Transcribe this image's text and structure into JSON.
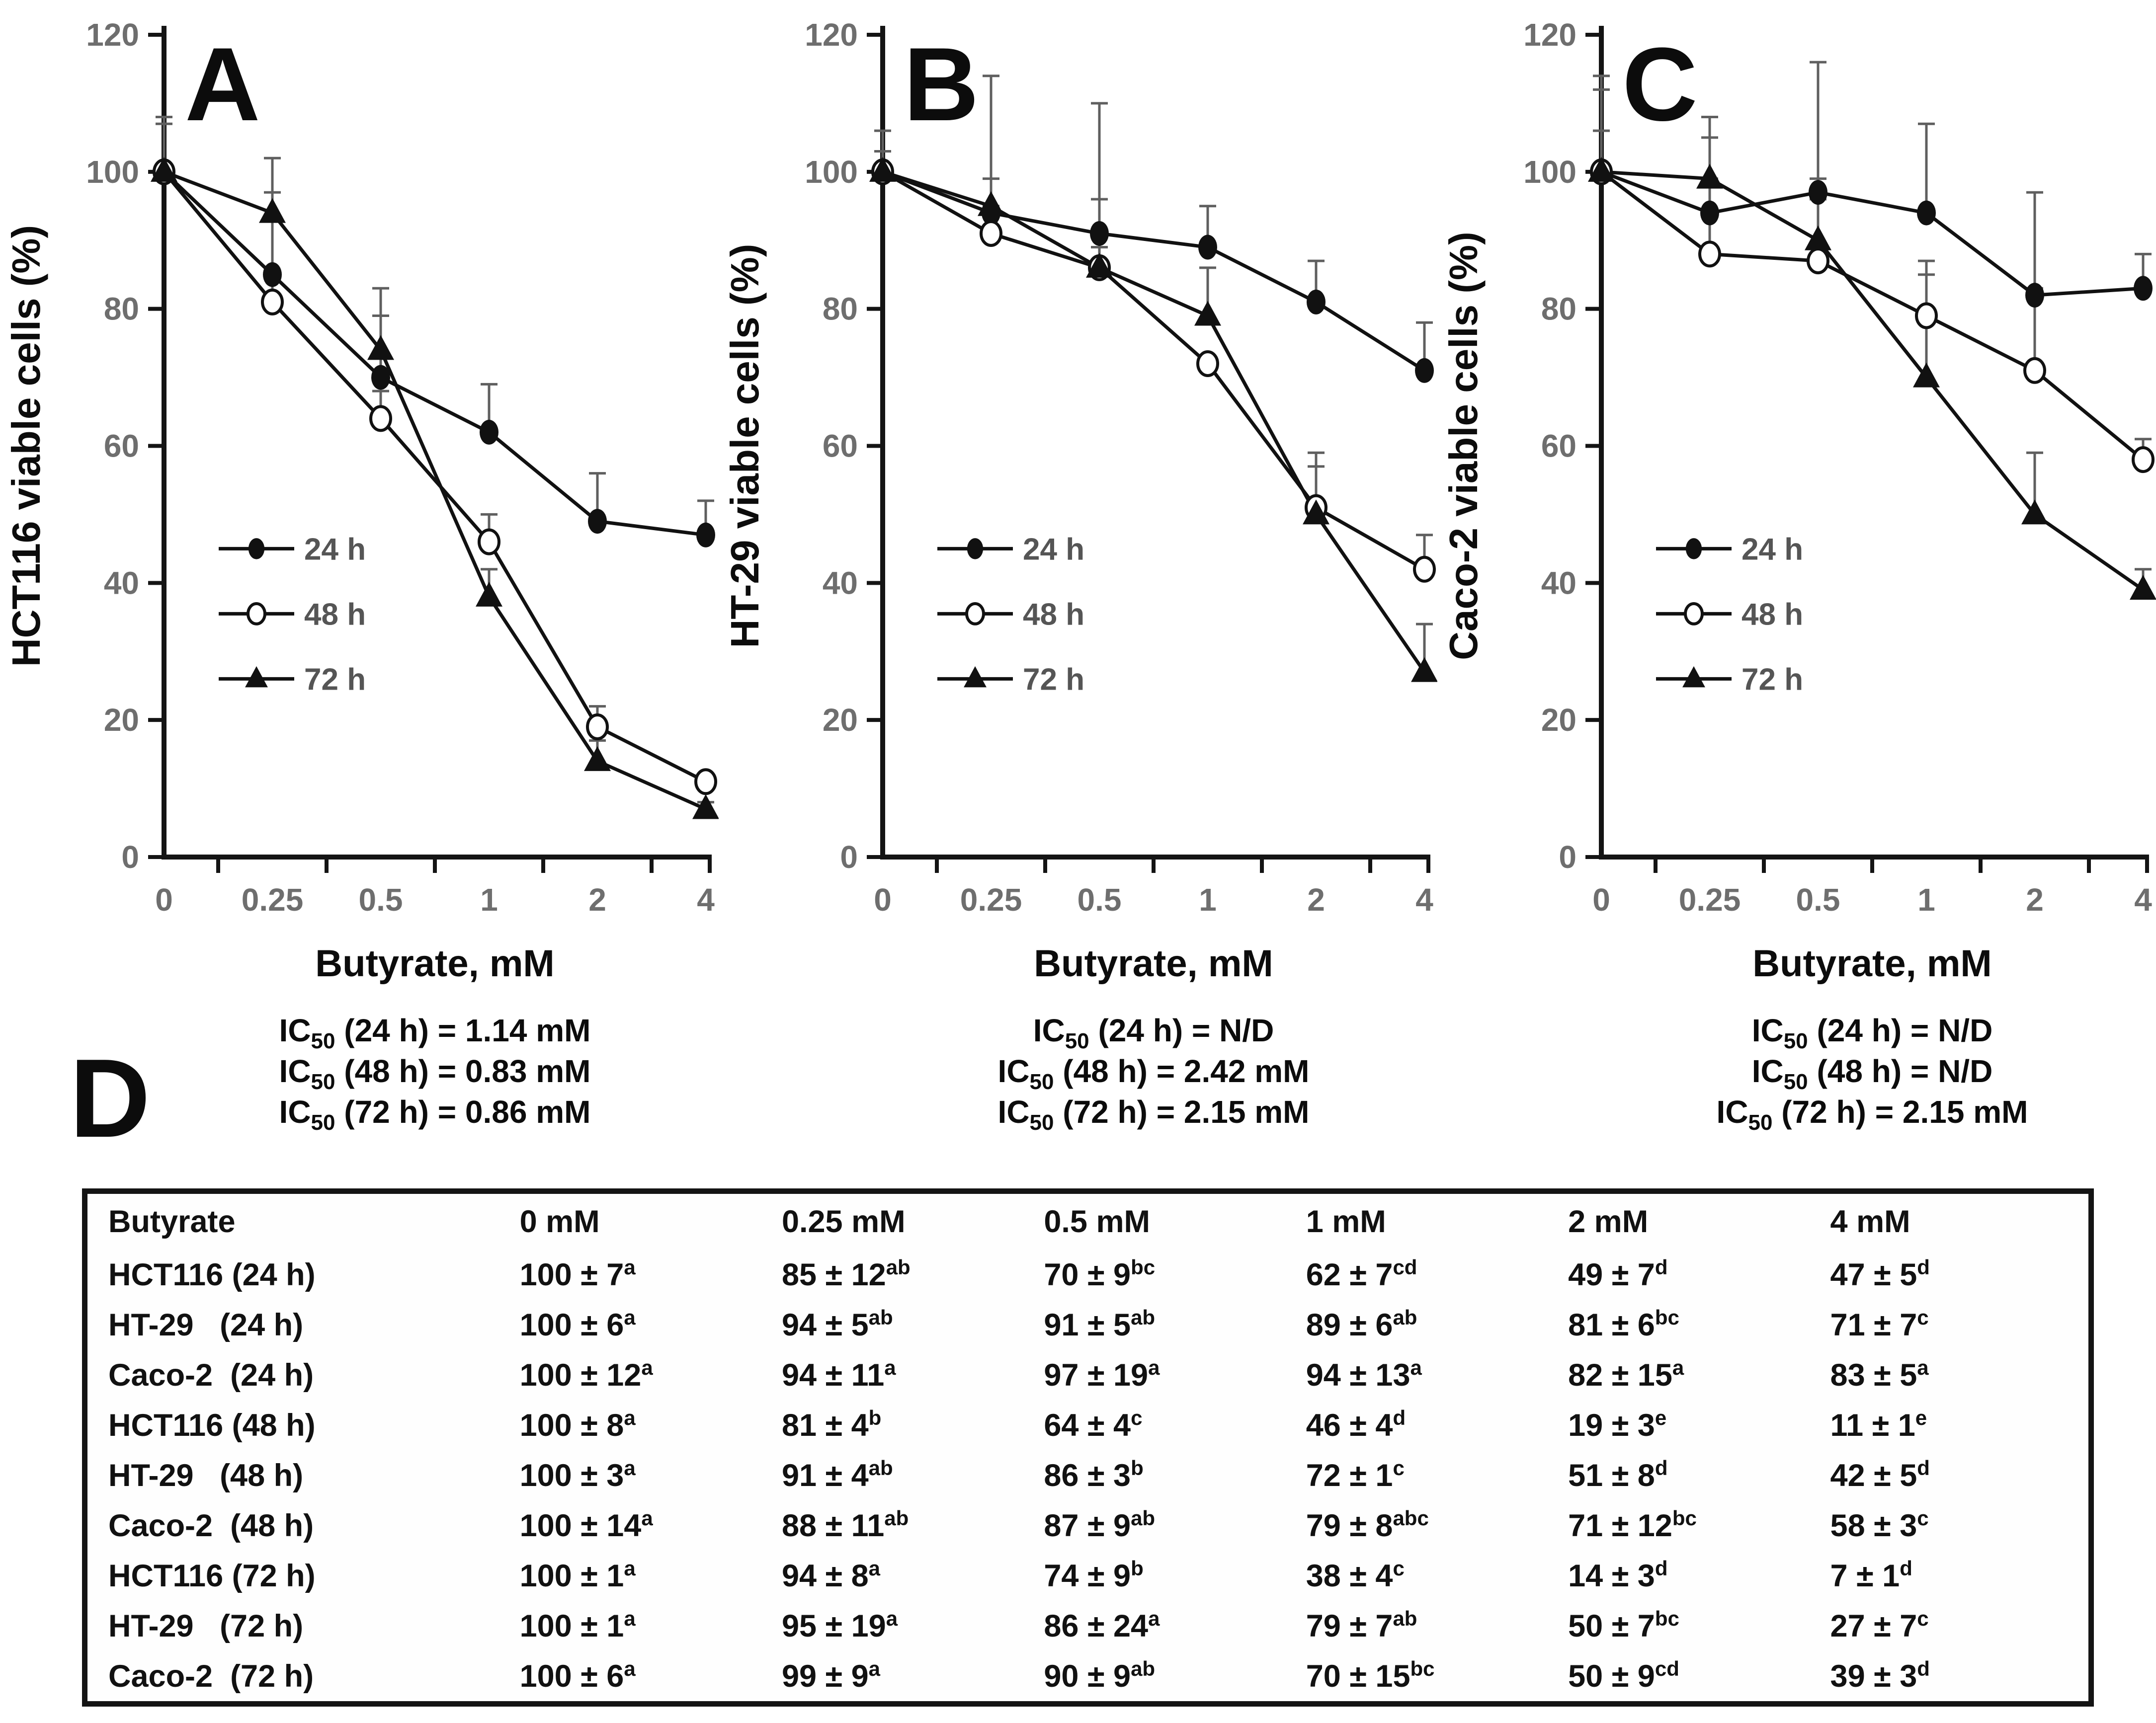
{
  "figure": {
    "x_axis_label": "Butyrate, mM",
    "legend_labels": [
      "24 h",
      "48 h",
      "72 h"
    ],
    "colors": {
      "axis": "#141414",
      "line": "#111111",
      "tick_label": "#6e6e6e",
      "legend_text": "#555555",
      "error_bar": "#5f5f5f",
      "background": "#ffffff"
    }
  },
  "chart_data": [
    {
      "type": "line",
      "panel": "A",
      "ylabel": "HCT116 viable cells (%)",
      "xlabel": "Butyrate, mM",
      "categories": [
        "0",
        "0.25",
        "0.5",
        "1",
        "2",
        "4"
      ],
      "ylim": [
        0,
        120
      ],
      "yticks": [
        0,
        20,
        40,
        60,
        80,
        100,
        120
      ],
      "grid": false,
      "legend_position": "inside-lower-left",
      "series": [
        {
          "name": "24 h",
          "marker": "filled-circle",
          "values": [
            100,
            85,
            70,
            62,
            49,
            47
          ],
          "errors": [
            7,
            12,
            9,
            7,
            7,
            5
          ]
        },
        {
          "name": "48 h",
          "marker": "open-circle",
          "values": [
            100,
            81,
            64,
            46,
            19,
            11
          ],
          "errors": [
            8,
            4,
            4,
            4,
            3,
            1
          ]
        },
        {
          "name": "72 h",
          "marker": "filled-triangle",
          "values": [
            100,
            94,
            74,
            38,
            14,
            7
          ],
          "errors": [
            1,
            8,
            9,
            4,
            3,
            1
          ]
        }
      ],
      "annotations": [
        {
          "pre": "IC",
          "sub": "50",
          "rest": " (24 h) = 1.14 mM"
        },
        {
          "pre": "IC",
          "sub": "50",
          "rest": " (48 h) = 0.83 mM"
        },
        {
          "pre": "IC",
          "sub": "50",
          "rest": " (72 h) = 0.86 mM"
        }
      ]
    },
    {
      "type": "line",
      "panel": "B",
      "ylabel": "HT-29 viable cells (%)",
      "xlabel": "Butyrate, mM",
      "categories": [
        "0",
        "0.25",
        "0.5",
        "1",
        "2",
        "4"
      ],
      "ylim": [
        0,
        120
      ],
      "yticks": [
        0,
        20,
        40,
        60,
        80,
        100,
        120
      ],
      "grid": false,
      "legend_position": "inside-lower-left",
      "series": [
        {
          "name": "24 h",
          "marker": "filled-circle",
          "values": [
            100,
            94,
            91,
            89,
            81,
            71
          ],
          "errors": [
            6,
            5,
            5,
            6,
            6,
            7
          ]
        },
        {
          "name": "48 h",
          "marker": "open-circle",
          "values": [
            100,
            91,
            86,
            72,
            51,
            42
          ],
          "errors": [
            3,
            4,
            3,
            1,
            8,
            5
          ]
        },
        {
          "name": "72 h",
          "marker": "filled-triangle",
          "values": [
            100,
            95,
            86,
            79,
            50,
            27
          ],
          "errors": [
            1,
            19,
            24,
            7,
            7,
            7
          ]
        }
      ],
      "annotations": [
        {
          "pre": "IC",
          "sub": "50",
          "rest": " (24 h) = N/D"
        },
        {
          "pre": "IC",
          "sub": "50",
          "rest": " (48 h) = 2.42 mM"
        },
        {
          "pre": "IC",
          "sub": "50",
          "rest": " (72 h) = 2.15 mM"
        }
      ]
    },
    {
      "type": "line",
      "panel": "C",
      "ylabel": "Caco-2 viable cells (%)",
      "xlabel": "Butyrate, mM",
      "categories": [
        "0",
        "0.25",
        "0.5",
        "1",
        "2",
        "4"
      ],
      "ylim": [
        0,
        120
      ],
      "yticks": [
        0,
        20,
        40,
        60,
        80,
        100,
        120
      ],
      "grid": false,
      "legend_position": "inside-lower-left",
      "series": [
        {
          "name": "24 h",
          "marker": "filled-circle",
          "values": [
            100,
            94,
            97,
            94,
            82,
            83
          ],
          "errors": [
            12,
            11,
            19,
            13,
            15,
            5
          ]
        },
        {
          "name": "48 h",
          "marker": "open-circle",
          "values": [
            100,
            88,
            87,
            79,
            71,
            58
          ],
          "errors": [
            14,
            11,
            9,
            8,
            12,
            3
          ]
        },
        {
          "name": "72 h",
          "marker": "filled-triangle",
          "values": [
            100,
            99,
            90,
            70,
            50,
            39
          ],
          "errors": [
            6,
            9,
            9,
            15,
            9,
            3
          ]
        }
      ],
      "annotations": [
        {
          "pre": "IC",
          "sub": "50",
          "rest": " (24 h) = N/D"
        },
        {
          "pre": "IC",
          "sub": "50",
          "rest": " (48 h) = N/D"
        },
        {
          "pre": "IC",
          "sub": "50",
          "rest": " (72 h) = 2.15 mM"
        }
      ]
    },
    {
      "type": "table",
      "panel": "D",
      "columns": [
        "Butyrate",
        "0 mM",
        "0.25 mM",
        "0.5 mM",
        "1 mM",
        "2 mM",
        "4 mM"
      ],
      "rows": [
        {
          "label": "HCT116 (24 h)",
          "cells": [
            {
              "v": "100 ± 7",
              "s": "a"
            },
            {
              "v": "85 ± 12",
              "s": "ab"
            },
            {
              "v": "70 ± 9",
              "s": "bc"
            },
            {
              "v": "62 ± 7",
              "s": "cd"
            },
            {
              "v": "49 ± 7",
              "s": "d"
            },
            {
              "v": "47 ± 5",
              "s": "d"
            }
          ]
        },
        {
          "label": "HT-29   (24 h)",
          "cells": [
            {
              "v": "100 ± 6",
              "s": "a"
            },
            {
              "v": "94 ± 5",
              "s": "ab"
            },
            {
              "v": "91 ± 5",
              "s": "ab"
            },
            {
              "v": "89 ± 6",
              "s": "ab"
            },
            {
              "v": "81 ± 6",
              "s": "bc"
            },
            {
              "v": "71 ± 7",
              "s": "c"
            }
          ]
        },
        {
          "label": "Caco-2  (24 h)",
          "cells": [
            {
              "v": "100 ± 12",
              "s": "a"
            },
            {
              "v": "94 ± 11",
              "s": "a"
            },
            {
              "v": "97 ± 19",
              "s": "a"
            },
            {
              "v": "94 ± 13",
              "s": "a"
            },
            {
              "v": "82 ± 15",
              "s": "a"
            },
            {
              "v": "83 ± 5",
              "s": "a"
            }
          ]
        },
        {
          "label": "HCT116 (48 h)",
          "cells": [
            {
              "v": "100 ± 8",
              "s": "a"
            },
            {
              "v": "81 ± 4",
              "s": "b"
            },
            {
              "v": "64 ± 4",
              "s": "c"
            },
            {
              "v": "46 ± 4",
              "s": "d"
            },
            {
              "v": "19 ± 3",
              "s": "e"
            },
            {
              "v": "11 ± 1",
              "s": "e"
            }
          ]
        },
        {
          "label": "HT-29   (48 h)",
          "cells": [
            {
              "v": "100 ± 3",
              "s": "a"
            },
            {
              "v": "91 ± 4",
              "s": "ab"
            },
            {
              "v": "86 ± 3",
              "s": "b"
            },
            {
              "v": "72 ± 1",
              "s": "c"
            },
            {
              "v": "51 ± 8",
              "s": "d"
            },
            {
              "v": "42 ± 5",
              "s": "d"
            }
          ]
        },
        {
          "label": "Caco-2  (48 h)",
          "cells": [
            {
              "v": "100 ± 14",
              "s": "a"
            },
            {
              "v": "88 ± 11",
              "s": "ab"
            },
            {
              "v": "87 ± 9",
              "s": "ab"
            },
            {
              "v": "79 ± 8",
              "s": "abc"
            },
            {
              "v": "71 ± 12",
              "s": "bc"
            },
            {
              "v": "58 ± 3",
              "s": "c"
            }
          ]
        },
        {
          "label": "HCT116 (72 h)",
          "cells": [
            {
              "v": "100 ± 1",
              "s": "a"
            },
            {
              "v": "94 ± 8",
              "s": "a"
            },
            {
              "v": "74 ± 9",
              "s": "b"
            },
            {
              "v": "38 ± 4",
              "s": "c"
            },
            {
              "v": "14 ± 3",
              "s": "d"
            },
            {
              "v": "7 ± 1",
              "s": "d"
            }
          ]
        },
        {
          "label": "HT-29   (72 h)",
          "cells": [
            {
              "v": "100 ± 1",
              "s": "a"
            },
            {
              "v": "95 ± 19",
              "s": "a"
            },
            {
              "v": "86 ± 24",
              "s": "a"
            },
            {
              "v": "79 ± 7",
              "s": "ab"
            },
            {
              "v": "50 ± 7",
              "s": "bc"
            },
            {
              "v": "27 ± 7",
              "s": "c"
            }
          ]
        },
        {
          "label": "Caco-2  (72 h)",
          "cells": [
            {
              "v": "100 ± 6",
              "s": "a"
            },
            {
              "v": "99 ± 9",
              "s": "a"
            },
            {
              "v": "90 ± 9",
              "s": "ab"
            },
            {
              "v": "70 ± 15",
              "s": "bc"
            },
            {
              "v": "50 ± 9",
              "s": "cd"
            },
            {
              "v": "39 ± 3",
              "s": "d"
            }
          ]
        }
      ]
    }
  ]
}
